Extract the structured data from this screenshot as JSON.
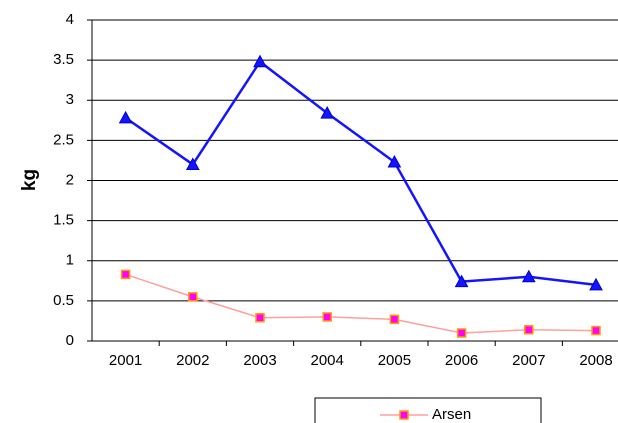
{
  "chart_data": {
    "type": "line",
    "y_label": "kg",
    "categories": [
      "2001",
      "2002",
      "2003",
      "2004",
      "2005",
      "2006",
      "2007",
      "2008"
    ],
    "series": [
      {
        "color": "#1414ff",
        "marker": "triangle",
        "marker_fill": "#1414ff",
        "marker_stroke": "#0000cc",
        "values": [
          2.78,
          2.2,
          3.48,
          2.84,
          2.23,
          0.74,
          0.8,
          0.7
        ]
      },
      {
        "name": "Arsen",
        "color": "#ff9f9f",
        "marker": "square",
        "marker_fill": "#ff00ff",
        "marker_stroke": "#ff9900",
        "values": [
          0.83,
          0.55,
          0.29,
          0.3,
          0.27,
          0.1,
          0.14,
          0.13
        ]
      }
    ],
    "ylim": [
      0,
      4
    ],
    "yticks": [
      0,
      0.5,
      1,
      1.5,
      2,
      2.5,
      3,
      3.5,
      4
    ],
    "grid": true,
    "legend": "bottom"
  }
}
